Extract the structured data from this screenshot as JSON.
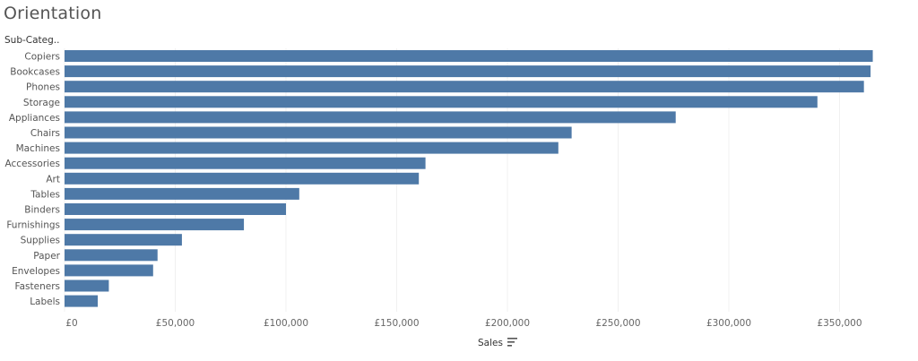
{
  "title": "Orientation",
  "row_header": "Sub-Categ..",
  "bar_color": "#4e79a7",
  "chart_data": {
    "type": "bar",
    "orientation": "horizontal",
    "title": "Orientation",
    "xlabel": "Sales",
    "ylabel": "Sub-Categ..",
    "xlim": [
      0,
      380000
    ],
    "x_ticks": [
      0,
      50000,
      100000,
      150000,
      200000,
      250000,
      300000,
      350000
    ],
    "x_tick_labels": [
      "£0",
      "£50,000",
      "£100,000",
      "£150,000",
      "£200,000",
      "£250,000",
      "£300,000",
      "£350,000"
    ],
    "grid": true,
    "sorted": "descending",
    "categories": [
      "Copiers",
      "Bookcases",
      "Phones",
      "Storage",
      "Appliances",
      "Chairs",
      "Machines",
      "Accessories",
      "Art",
      "Tables",
      "Binders",
      "Furnishings",
      "Supplies",
      "Paper",
      "Envelopes",
      "Fasteners",
      "Labels"
    ],
    "values": [
      365000,
      364000,
      361000,
      340000,
      276000,
      229000,
      223000,
      163000,
      160000,
      106000,
      100000,
      81000,
      53000,
      42000,
      40000,
      20000,
      15000
    ]
  }
}
